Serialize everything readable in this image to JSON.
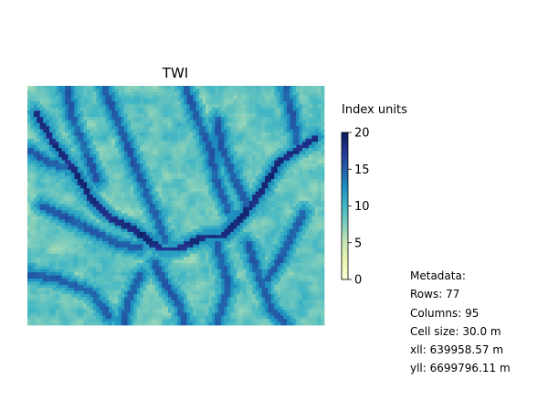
{
  "chart_data": {
    "type": "heatmap",
    "title": "TWI",
    "rows": 77,
    "columns": 95,
    "colorbar": {
      "label": "Index units",
      "vmin": 0,
      "vmax": 20,
      "ticks": [
        "0",
        "5",
        "10",
        "15",
        "20"
      ],
      "colormap": "YlGnBu"
    },
    "axes_visible": false
  },
  "metadata": {
    "heading": "Metadata:",
    "rows": "Rows: 77",
    "columns": "Columns: 95",
    "cell_size": "Cell size: 30.0 m",
    "xll": "xll: 639958.57 m",
    "yll": "yll: 6699796.11 m"
  },
  "colors": {
    "cmap_stops": [
      "#ffffd9",
      "#edf8b1",
      "#c7e9b4",
      "#7fcdbb",
      "#41b6c4",
      "#1d91c0",
      "#225ea8",
      "#253494",
      "#081d58"
    ]
  }
}
